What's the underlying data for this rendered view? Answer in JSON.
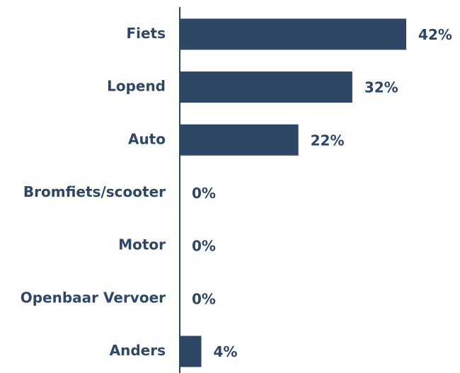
{
  "chart_data": {
    "type": "bar",
    "orientation": "horizontal",
    "categories": [
      "Fiets",
      "Lopend",
      "Auto",
      "Bromfiets/scooter",
      "Motor",
      "Openbaar Vervoer",
      "Anders"
    ],
    "values": [
      42,
      32,
      22,
      0,
      0,
      0,
      4
    ],
    "value_labels": [
      "42%",
      "32%",
      "22%",
      "0%",
      "0%",
      "0%",
      "4%"
    ],
    "color": "#2e4766"
  }
}
